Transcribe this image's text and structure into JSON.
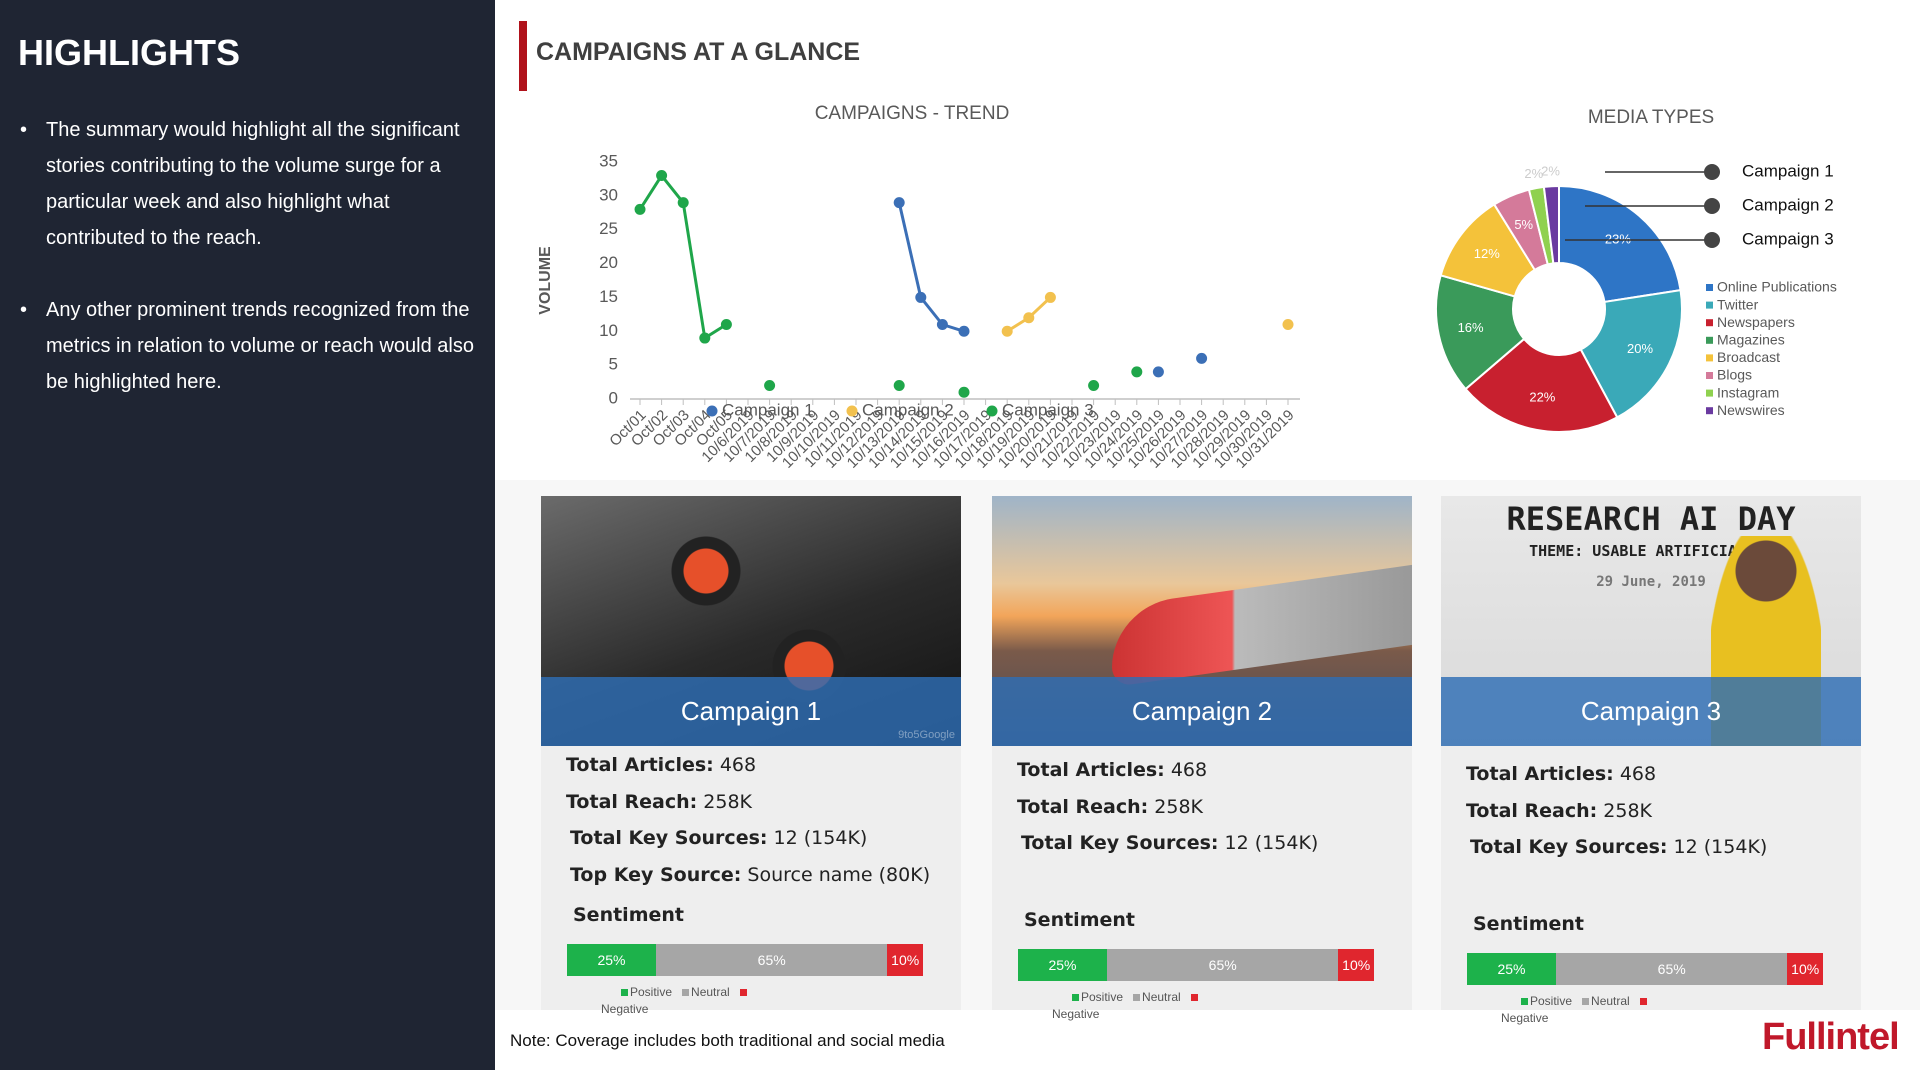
{
  "highlights": {
    "title": "HIGHLIGHTS",
    "bullets": [
      "The summary would highlight all the significant stories contributing to the volume surge for a particular week and also highlight what contributed to the reach.",
      "Any other prominent trends recognized from the metrics in relation to volume or reach would also be highlighted here."
    ]
  },
  "header": {
    "title": "CAMPAIGNS AT A GLANCE"
  },
  "chart_data": [
    {
      "type": "line",
      "title": "CAMPAIGNS - TREND",
      "y_label": "VOLUME",
      "categories": [
        "Oct/01",
        "Oct/02",
        "Oct/03",
        "Oct/04",
        "Oct/05",
        "10/6/2019",
        "10/7/2019",
        "10/8/2019",
        "10/9/2019",
        "10/10/2019",
        "10/11/2019",
        "10/12/2019",
        "10/13/2019",
        "10/14/2019",
        "10/15/2019",
        "10/16/2019",
        "10/17/2019",
        "10/18/2019",
        "10/19/2019",
        "10/20/2019",
        "10/21/2019",
        "10/22/2019",
        "10/23/2019",
        "10/24/2019",
        "10/25/2019",
        "10/26/2019",
        "10/27/2019",
        "10/28/2019",
        "10/29/2019",
        "10/30/2019",
        "10/31/2019"
      ],
      "series": [
        {
          "name": "Campaign 1",
          "color": "#3b6fb6",
          "values": [
            null,
            null,
            null,
            null,
            null,
            null,
            null,
            null,
            null,
            null,
            null,
            null,
            29,
            15,
            11,
            10,
            null,
            null,
            null,
            null,
            null,
            null,
            null,
            null,
            4,
            null,
            6,
            null,
            null,
            null,
            null
          ]
        },
        {
          "name": "Campaign 2",
          "color": "#f2c14e",
          "values": [
            null,
            null,
            null,
            null,
            null,
            null,
            null,
            null,
            null,
            null,
            null,
            null,
            null,
            null,
            null,
            null,
            null,
            10,
            12,
            15,
            null,
            null,
            null,
            null,
            null,
            null,
            null,
            null,
            null,
            null,
            11
          ]
        },
        {
          "name": "Campaign 3",
          "color": "#1fa64a",
          "values": [
            28,
            33,
            29,
            9,
            11,
            null,
            2,
            null,
            null,
            null,
            null,
            null,
            2,
            null,
            null,
            1,
            null,
            null,
            null,
            null,
            null,
            2,
            null,
            4,
            null,
            null,
            null,
            null,
            null,
            null,
            null
          ]
        }
      ],
      "ylim": [
        0,
        35
      ],
      "yticks": [
        0,
        5,
        10,
        15,
        20,
        25,
        30,
        35
      ],
      "grid": false
    },
    {
      "type": "pie",
      "title": "MEDIA TYPES",
      "donut": true,
      "categories": [
        "Online Publications",
        "Twitter",
        "Newspapers",
        "Magazines",
        "Broadcast",
        "Blogs",
        "Instagram",
        "Newswires"
      ],
      "values": [
        23,
        20,
        22,
        16,
        12,
        5,
        2,
        2
      ],
      "value_labels": [
        "23%",
        "20%",
        "22%",
        "16%",
        "12%",
        "5%",
        "2%",
        "2%"
      ],
      "colors": [
        "#2e75c6",
        "#3aa9b8",
        "#c8202f",
        "#3a9a5a",
        "#f4c23a",
        "#d47a9a",
        "#8fd14f",
        "#6a3aa0"
      ],
      "annotations": [
        "Campaign 1",
        "Campaign 2",
        "Campaign 3"
      ]
    }
  ],
  "campaigns": [
    {
      "title": "Campaign 1",
      "photo_credit": "9to5Google",
      "stats": [
        {
          "label": "Total Articles:",
          "value": "468"
        },
        {
          "label": "Total Reach:",
          "value": "258K"
        },
        {
          "label": "Total Key Sources:",
          "value": "12 (154K)"
        },
        {
          "label": "Top Key Source:",
          "value": "Source name (80K)"
        }
      ],
      "sentiment": {
        "title": "Sentiment",
        "categories": [
          "Positive",
          "Neutral",
          "Negative"
        ],
        "values": [
          25,
          65,
          10
        ],
        "value_labels": [
          "25%",
          "65%",
          "10%"
        ]
      }
    },
    {
      "title": "Campaign 2",
      "stats": [
        {
          "label": "Total Articles:",
          "value": "468"
        },
        {
          "label": "Total Reach:",
          "value": "258K"
        },
        {
          "label": "Total Key Sources:",
          "value": "12 (154K)"
        }
      ],
      "sentiment": {
        "title": "Sentiment",
        "categories": [
          "Positive",
          "Neutral",
          "Negative"
        ],
        "values": [
          25,
          65,
          10
        ],
        "value_labels": [
          "25%",
          "65%",
          "10%"
        ]
      }
    },
    {
      "title": "Campaign 3",
      "poster": [
        "RESEARCH AI DAY",
        "THEME: USABLE ARTIFICIAL IN",
        "29 June, 2019"
      ],
      "stats": [
        {
          "label": "Total Articles:",
          "value": "468"
        },
        {
          "label": "Total Reach:",
          "value": "258K"
        },
        {
          "label": "Total Key Sources:",
          "value": "12 (154K)"
        }
      ],
      "sentiment": {
        "title": "Sentiment",
        "categories": [
          "Positive",
          "Neutral",
          "Negative"
        ],
        "values": [
          25,
          65,
          10
        ],
        "value_labels": [
          "25%",
          "65%",
          "10%"
        ]
      }
    }
  ],
  "footer": {
    "note": "Note: Coverage includes both traditional and social media",
    "logo": "Fullintel"
  }
}
